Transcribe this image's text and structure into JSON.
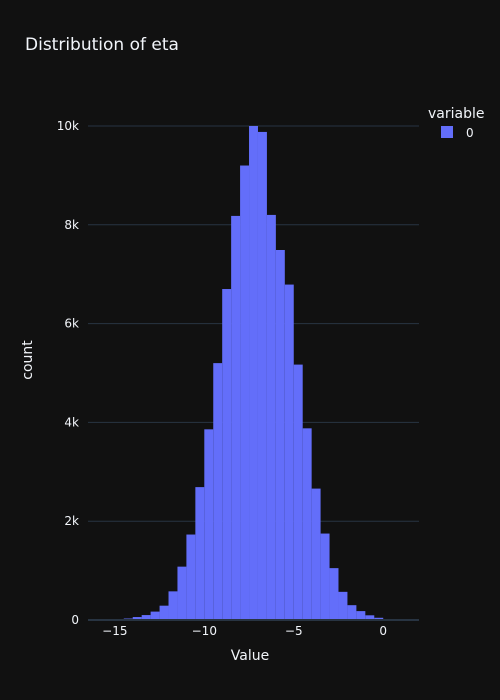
{
  "chart_data": {
    "type": "bar",
    "title": "Distribution of eta",
    "xlabel": "Value",
    "ylabel": "count",
    "xlim": [
      -16.5,
      2
    ],
    "ylim": [
      0,
      10000
    ],
    "x_ticks": [
      -15,
      -10,
      -5,
      0
    ],
    "x_tick_labels": [
      "−15",
      "−10",
      "−5",
      "0"
    ],
    "y_ticks": [
      0,
      2000,
      4000,
      6000,
      8000,
      10000
    ],
    "y_tick_labels": [
      "0",
      "2k",
      "4k",
      "6k",
      "8k",
      "10k"
    ],
    "grid": true,
    "legend": {
      "title": "variable",
      "position": "top-right"
    },
    "bin_width": 0.5,
    "series": [
      {
        "name": "0",
        "color": "#636efa",
        "bins": [
          [
            -15.5,
            5
          ],
          [
            -15,
            10
          ],
          [
            -14.5,
            30
          ],
          [
            -14,
            60
          ],
          [
            -13.5,
            100
          ],
          [
            -13,
            170
          ],
          [
            -12.5,
            290
          ],
          [
            -12,
            580
          ],
          [
            -11.5,
            1080
          ],
          [
            -11,
            1730
          ],
          [
            -10.5,
            2690
          ],
          [
            -10,
            3860
          ],
          [
            -9.5,
            5200
          ],
          [
            -9,
            6700
          ],
          [
            -8.5,
            8180
          ],
          [
            -8,
            9200
          ],
          [
            -7.5,
            10000
          ],
          [
            -7,
            9880
          ],
          [
            -6.5,
            8200
          ],
          [
            -6,
            7490
          ],
          [
            -5.5,
            6790
          ],
          [
            -5,
            5170
          ],
          [
            -4.5,
            3880
          ],
          [
            -4,
            2660
          ],
          [
            -3.5,
            1750
          ],
          [
            -3,
            1050
          ],
          [
            -2.5,
            570
          ],
          [
            -2,
            300
          ],
          [
            -1.5,
            180
          ],
          [
            -1,
            95
          ],
          [
            -0.5,
            45
          ],
          [
            0,
            20
          ],
          [
            0.5,
            8
          ]
        ]
      }
    ]
  },
  "colors": {
    "background": "#111111",
    "grid": "#283442",
    "text": "#f2f5fa",
    "bar": "#636efa"
  }
}
